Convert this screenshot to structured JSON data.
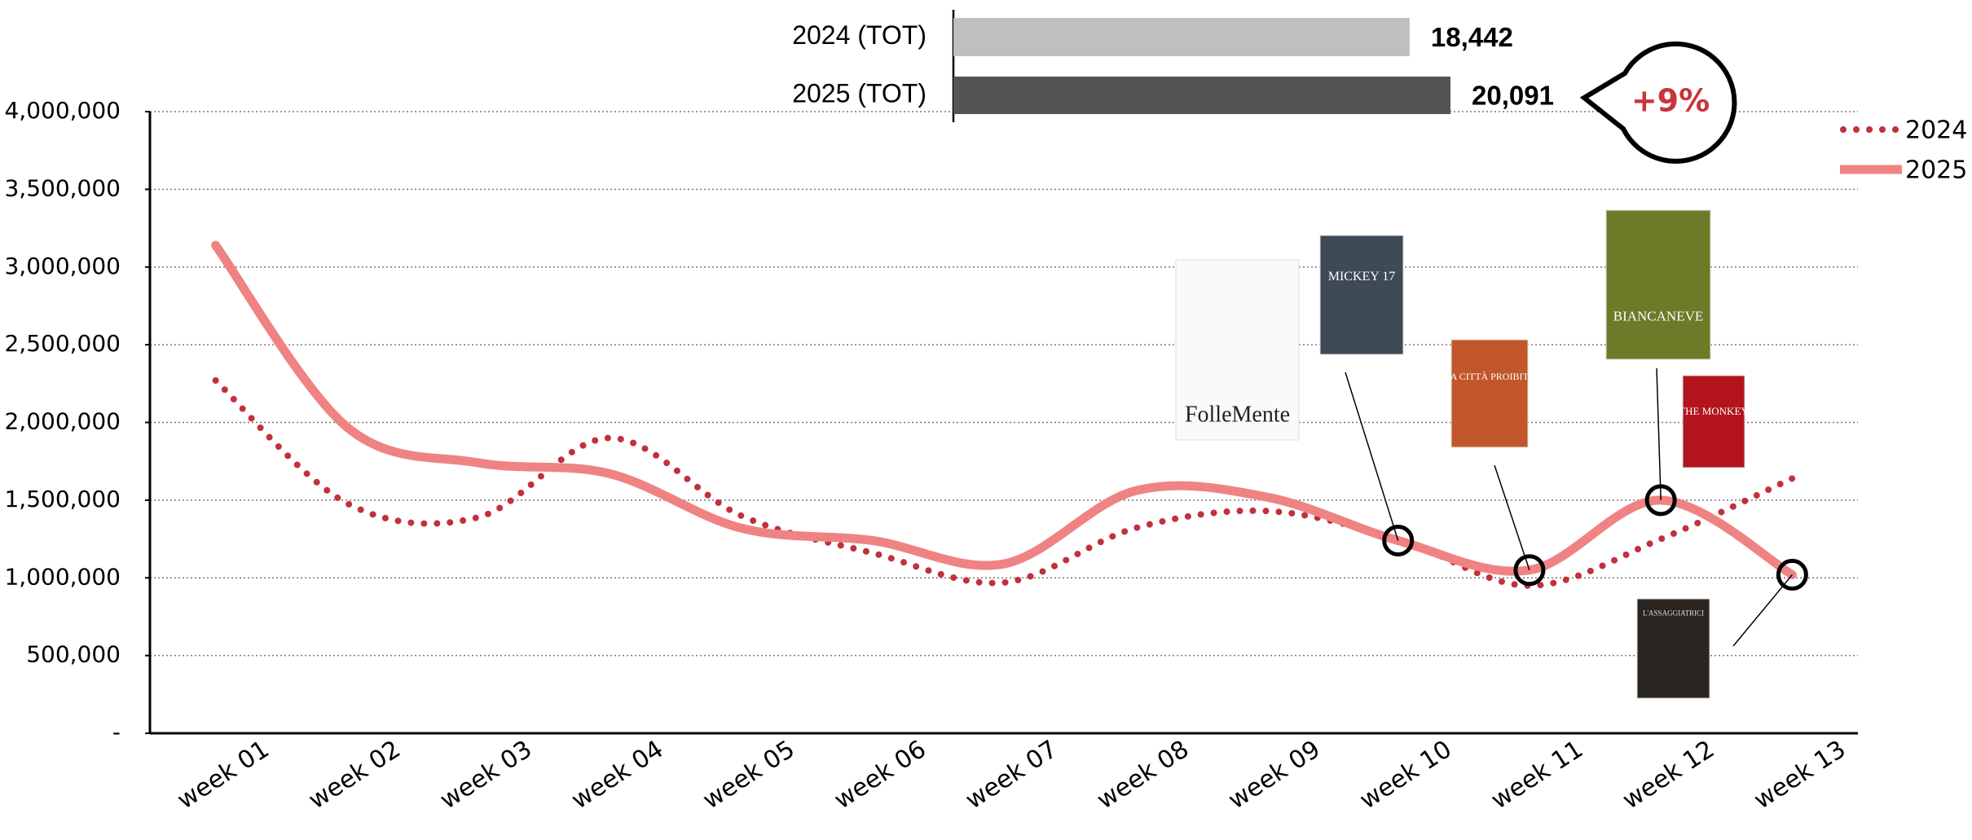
{
  "chart_data": [
    {
      "type": "line",
      "categories": [
        "week 01",
        "week 02",
        "week 03",
        "week 04",
        "week 05",
        "week 06",
        "week 07",
        "week 08",
        "week 09",
        "week 10",
        "week 11",
        "week 12",
        "week 13"
      ],
      "series": [
        {
          "name": "2024",
          "color": "#c1313b",
          "style": "dotted",
          "values": [
            2270000,
            1480000,
            1390000,
            1900000,
            1400000,
            1160000,
            970000,
            1320000,
            1430000,
            1250000,
            950000,
            1250000,
            1640000
          ]
        },
        {
          "name": "2025",
          "color": "#ef8383",
          "style": "solid",
          "values": [
            3140000,
            1970000,
            1740000,
            1670000,
            1320000,
            1240000,
            1090000,
            1560000,
            1520000,
            1240000,
            1050000,
            1500000,
            1020000
          ]
        }
      ],
      "ylim": [
        0,
        4000000
      ],
      "yticks": [
        {
          "value": 0,
          "label": "-"
        },
        {
          "value": 500000,
          "label": "500,000"
        },
        {
          "value": 1000000,
          "label": "1,000,000"
        },
        {
          "value": 1500000,
          "label": "1,500,000"
        },
        {
          "value": 2000000,
          "label": "2,000,000"
        },
        {
          "value": 2500000,
          "label": "2,500,000"
        },
        {
          "value": 3000000,
          "label": "3,000,000"
        },
        {
          "value": 3500000,
          "label": "3,500,000"
        },
        {
          "value": 4000000,
          "label": "4,000,000"
        }
      ],
      "grid": true,
      "legend": "right",
      "posters": [
        "FolleMente",
        "MICKEY 17",
        "LA CITTÀ PROIBITA",
        "BIANCANEVE",
        "THE MONKEY",
        "L'ASSAGGIATRICI"
      ]
    },
    {
      "type": "hbar",
      "categories": [
        "2024 (TOT)",
        "2025 (TOT)"
      ],
      "values": [
        18442,
        20091
      ],
      "value_labels": [
        "18,442",
        "20,091"
      ],
      "colors": [
        "#bfbfbf",
        "#545454"
      ],
      "annotation": "+9%"
    }
  ]
}
